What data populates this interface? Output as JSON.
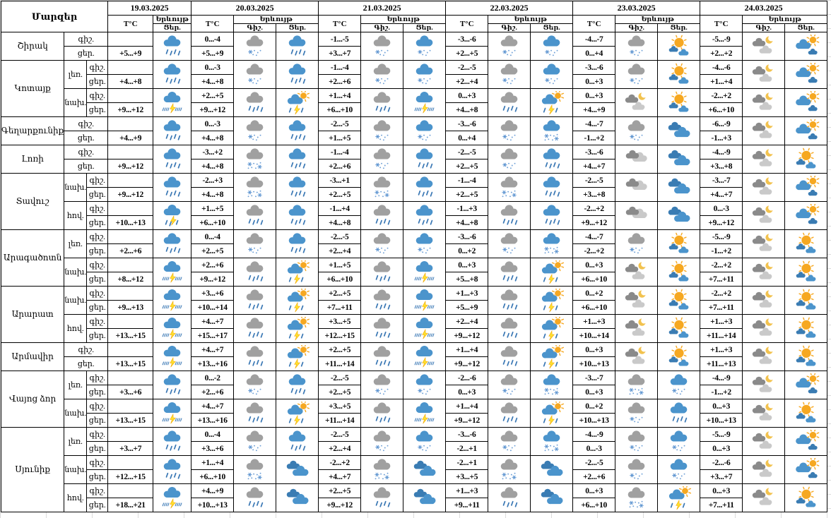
{
  "header": {
    "region_header": "Մարզեր",
    "temp_header": "T°C",
    "phenomenon_header": "Երևույթ",
    "night_header": "Գիշ.",
    "day_header": "Ցեր.",
    "dates": [
      "19.03.2025",
      "20.03.2025",
      "21.03.2025",
      "22.03.2025",
      "23.03.2025",
      "24.03.2025"
    ]
  },
  "labels": {
    "night": "գիշ.",
    "day": "ցեր."
  },
  "colors": {
    "cloud_blue": "#4b94cc",
    "cloud_blue_dark": "#3a7cb3",
    "cloud_gray": "#a0a0a0",
    "cloud_gray_dark": "#8a8a8a",
    "cloud_gray_light": "#c9c9c9",
    "rain": "#3977b4",
    "flake": "#5b93d0",
    "flake_dot": "#6d9fd6",
    "sun": "#f6a821",
    "moon": "#f2c24e",
    "bolt": "#ffe12e",
    "bolt_edge": "#f0a500",
    "border": "#000000",
    "grid": "#dcdcdc"
  },
  "icon_names": {
    "rain-blue": "rain-icon",
    "rain-gray": "rain-icon",
    "snow-gray": "snow-icon",
    "snow-blue": "snow-icon",
    "sleet-gray": "heavy-snow-icon",
    "sleet-blue": "heavy-snow-icon",
    "storm-blue": "thunderstorm-icon",
    "storm-light-blue": "thunderstorm-light-icon",
    "sun-storm": "sun-thunderstorm-icon",
    "clouds-blue": "clouds-icon",
    "clouds-gray": "clouds-icon",
    "moon-cloud": "moon-clouds-icon",
    "sun-clouds": "sunny-clouds-icon",
    "cloud-sun": "partly-sunny-icon"
  },
  "regions": [
    {
      "name": "Շիրակ",
      "parts": [
        {
          "sub": null,
          "d": [
            [
              "",
              "+5...+9",
              null,
              "rain-blue"
            ],
            [
              "0...-4",
              "+5...+9",
              "snow-gray",
              "rain-blue"
            ],
            [
              "-1...-5",
              "+3...+7",
              "snow-gray",
              "snow-blue"
            ],
            [
              "-3...-6",
              "+2...+5",
              "snow-gray",
              "snow-blue"
            ],
            [
              "-4...-7",
              "0...+4",
              "snow-gray",
              "sun-clouds"
            ],
            [
              "-5...-9",
              "+2...+2",
              "moon-cloud",
              "cloud-sun"
            ]
          ]
        }
      ]
    },
    {
      "name": "Կոտայք",
      "parts": [
        {
          "sub": "լեռ.",
          "d": [
            [
              "",
              "+4...+8",
              null,
              "rain-blue"
            ],
            [
              "0...-3",
              "+4...+8",
              "snow-gray",
              "rain-blue"
            ],
            [
              "-1...-4",
              "+2...+6",
              "snow-gray",
              "snow-blue"
            ],
            [
              "-2...-5",
              "+2...+4",
              "snow-gray",
              "snow-blue"
            ],
            [
              "-3...-6",
              "0...+3",
              "snow-gray",
              "sun-clouds"
            ],
            [
              "-4...-6",
              "+1...+4",
              "moon-cloud",
              "cloud-sun"
            ]
          ]
        },
        {
          "sub": "նախ.",
          "d": [
            [
              "",
              "+9...+12",
              null,
              "storm-blue"
            ],
            [
              "+2...+5",
              "+9...+12",
              "rain-gray",
              "sun-storm"
            ],
            [
              "+1...+4",
              "+6...+10",
              "rain-gray",
              "storm-blue"
            ],
            [
              "0...+3",
              "+4...+8",
              "rain-gray",
              "sun-storm"
            ],
            [
              "0...+3",
              "+4...+9",
              "moon-cloud",
              "sun-clouds"
            ],
            [
              "-2...+2",
              "+6...+10",
              "moon-cloud",
              "cloud-sun"
            ]
          ]
        }
      ]
    },
    {
      "name": "Գեղարքունիք",
      "parts": [
        {
          "sub": null,
          "d": [
            [
              "",
              "+4...+9",
              null,
              "rain-blue"
            ],
            [
              "0...-3",
              "+4...+8",
              "snow-gray",
              "rain-blue"
            ],
            [
              "-2...-5",
              "+1...+5",
              "snow-gray",
              "snow-blue"
            ],
            [
              "-3...-6",
              "0...+4",
              "snow-gray",
              "sleet-blue"
            ],
            [
              "-4...-7",
              "-1...+2",
              "snow-gray",
              "clouds-blue"
            ],
            [
              "-6...-9",
              "-1...+3",
              "moon-cloud",
              "cloud-sun"
            ]
          ]
        }
      ]
    },
    {
      "name": "Լոռի",
      "parts": [
        {
          "sub": null,
          "d": [
            [
              "",
              "+9...+12",
              null,
              "rain-blue"
            ],
            [
              "-3...+2",
              "+4...+8",
              "sleet-gray",
              "rain-blue"
            ],
            [
              "-1...-4",
              "+2...+6",
              "snow-gray",
              "rain-blue"
            ],
            [
              "-2...-5",
              "+2...+5",
              "snow-gray",
              "rain-blue"
            ],
            [
              "-3...-6",
              "+4...+7",
              "clouds-gray",
              "clouds-blue"
            ],
            [
              "-4...-9",
              "+3...+8",
              "moon-cloud",
              "sun-clouds"
            ]
          ]
        }
      ]
    },
    {
      "name": "Տավուշ",
      "parts": [
        {
          "sub": "նախ.",
          "d": [
            [
              "",
              "+9...+12",
              null,
              "rain-blue"
            ],
            [
              "-2...+3",
              "+4...+8",
              "sleet-gray",
              "rain-blue"
            ],
            [
              "-3...+1",
              "+2...+5",
              "sleet-gray",
              "rain-blue"
            ],
            [
              "-1...-4",
              "+2...+5",
              "sleet-gray",
              "rain-blue"
            ],
            [
              "-2...-5",
              "+3...+8",
              "clouds-gray",
              "clouds-blue"
            ],
            [
              "-3...-7",
              "+4...+7",
              "moon-cloud",
              "cloud-sun"
            ]
          ]
        },
        {
          "sub": "հով.",
          "d": [
            [
              "",
              "+10...+13",
              null,
              "storm-light-blue"
            ],
            [
              "+1...+5",
              "+6...+10",
              "rain-gray",
              "rain-blue"
            ],
            [
              "-1...+4",
              "+4...+8",
              "rain-gray",
              "rain-blue"
            ],
            [
              "-1...+3",
              "+4...+8",
              "rain-gray",
              "rain-blue"
            ],
            [
              "-2...+2",
              "+9...+12",
              "clouds-gray",
              "clouds-blue"
            ],
            [
              "0...-3",
              "+9...+12",
              "moon-cloud",
              "cloud-sun"
            ]
          ]
        }
      ]
    },
    {
      "name": "Արագածոտն",
      "parts": [
        {
          "sub": "լեռ.",
          "d": [
            [
              "",
              "+2...+6",
              null,
              "rain-blue"
            ],
            [
              "0...-4",
              "+2...+5",
              "snow-gray",
              "rain-blue"
            ],
            [
              "-2...-5",
              "+2...+4",
              "snow-gray",
              "snow-blue"
            ],
            [
              "-3...-6",
              "0...+2",
              "snow-gray",
              "sleet-blue"
            ],
            [
              "-4...-7",
              "-2...+2",
              "snow-gray",
              "sun-clouds"
            ],
            [
              "-5...-9",
              "-1...+2",
              "moon-cloud",
              "sun-clouds"
            ]
          ]
        },
        {
          "sub": "նախ.",
          "d": [
            [
              "",
              "+8...+12",
              null,
              "storm-blue"
            ],
            [
              "+2...+6",
              "+9...+12",
              "rain-gray",
              "sun-storm"
            ],
            [
              "+1...+5",
              "+6...+10",
              "rain-gray",
              "storm-blue"
            ],
            [
              "0...+3",
              "+5...+8",
              "rain-gray",
              "sun-storm"
            ],
            [
              "0...+3",
              "+6...+10",
              "moon-cloud",
              "sun-clouds"
            ],
            [
              "-2...+2",
              "+7...+11",
              "moon-cloud",
              "sun-clouds"
            ]
          ]
        }
      ]
    },
    {
      "name": "Արարատ",
      "parts": [
        {
          "sub": "նախ.",
          "d": [
            [
              "",
              "+9...+13",
              null,
              "storm-blue"
            ],
            [
              "+3...+6",
              "+10...+14",
              "rain-gray",
              "sun-storm"
            ],
            [
              "+2...+5",
              "+7...+11",
              "rain-gray",
              "storm-blue"
            ],
            [
              "+1...+3",
              "+5...+9",
              "rain-gray",
              "sun-storm"
            ],
            [
              "0...+2",
              "+6...+10",
              "moon-cloud",
              "sun-clouds"
            ],
            [
              "-2...+2",
              "+7...+11",
              "moon-cloud",
              "sun-clouds"
            ]
          ]
        },
        {
          "sub": "հով.",
          "d": [
            [
              "",
              "+13...+15",
              null,
              "storm-blue"
            ],
            [
              "+4...+7",
              "+15...+17",
              "rain-gray",
              "sun-storm"
            ],
            [
              "+3...+5",
              "+12...+15",
              "rain-gray",
              "storm-blue"
            ],
            [
              "+2...+4",
              "+9...+12",
              "rain-gray",
              "sun-storm"
            ],
            [
              "+1...+3",
              "+10...+14",
              "moon-cloud",
              "sun-clouds"
            ],
            [
              "+1...+3",
              "+11...+14",
              "moon-cloud",
              "sun-clouds"
            ]
          ]
        }
      ]
    },
    {
      "name": "Արմավիր",
      "parts": [
        {
          "sub": null,
          "d": [
            [
              "",
              "+13...+15",
              null,
              "storm-blue"
            ],
            [
              "+4...+7",
              "+13...+16",
              "rain-gray",
              "sun-storm"
            ],
            [
              "+2...+5",
              "+11...+14",
              "rain-gray",
              "storm-blue"
            ],
            [
              "+1...+4",
              "+9...+12",
              "rain-gray",
              "sun-storm"
            ],
            [
              "0...+3",
              "+10...+13",
              "moon-cloud",
              "sun-clouds"
            ],
            [
              "+1...+3",
              "+11...+13",
              "moon-cloud",
              "sun-clouds"
            ]
          ]
        }
      ]
    },
    {
      "name": "Վայոց ձոր",
      "parts": [
        {
          "sub": "լեռ.",
          "d": [
            [
              "",
              "+3...+6",
              null,
              "rain-blue"
            ],
            [
              "0...-2",
              "+2...+6",
              "snow-gray",
              "rain-blue"
            ],
            [
              "-2...-5",
              "+2...+5",
              "snow-gray",
              "snow-blue"
            ],
            [
              "-2...-6",
              "0...+3",
              "snow-gray",
              "sleet-blue"
            ],
            [
              "-3...-7",
              "0...+3",
              "sleet-gray",
              "snow-blue"
            ],
            [
              "-4...-9",
              "-1...+2",
              "moon-cloud",
              "cloud-sun"
            ]
          ]
        },
        {
          "sub": "նախ.",
          "d": [
            [
              "",
              "+13...+15",
              null,
              "storm-blue"
            ],
            [
              "+4...+7",
              "+13...+16",
              "rain-gray",
              "sun-storm"
            ],
            [
              "+3...+5",
              "+11...+14",
              "rain-gray",
              "storm-blue"
            ],
            [
              "+1...+4",
              "+9...+12",
              "rain-gray",
              "sun-storm"
            ],
            [
              "0...+2",
              "+10...+13",
              "snow-gray",
              "rain-blue"
            ],
            [
              "0...+3",
              "+10...+13",
              "moon-cloud",
              "sun-clouds"
            ]
          ]
        }
      ]
    },
    {
      "name": "Սյունիք",
      "parts": [
        {
          "sub": "լեռ.",
          "d": [
            [
              "",
              "+3...+7",
              null,
              "rain-blue"
            ],
            [
              "0...-4",
              "+3...+6",
              "snow-gray",
              "rain-blue"
            ],
            [
              "-2...-5",
              "+2...+4",
              "snow-gray",
              "snow-blue"
            ],
            [
              "-3...-6",
              "-2...+1",
              "snow-gray",
              "sleet-blue"
            ],
            [
              "-4...-9",
              "0...-3",
              "snow-gray",
              "snow-blue"
            ],
            [
              "-5...-9",
              "0...+3",
              "moon-cloud",
              "cloud-sun"
            ]
          ]
        },
        {
          "sub": "նախ.",
          "d": [
            [
              "",
              "+12...+15",
              null,
              "rain-blue"
            ],
            [
              "+1...+4",
              "+6...+10",
              "sleet-gray",
              "clouds-blue"
            ],
            [
              "-2...+2",
              "+4...+7",
              "sleet-gray",
              "clouds-blue"
            ],
            [
              "-2...+1",
              "+3...+5",
              "sleet-gray",
              "clouds-blue"
            ],
            [
              "-2...-5",
              "+2...+6",
              "snow-gray",
              "snow-blue"
            ],
            [
              "-2...-6",
              "+3...+7",
              "moon-cloud",
              "cloud-sun"
            ]
          ]
        },
        {
          "sub": "հով.",
          "d": [
            [
              "",
              "+18...+21",
              null,
              "storm-blue"
            ],
            [
              "+4...+9",
              "+10...+13",
              "rain-gray",
              "clouds-blue"
            ],
            [
              "+2...+5",
              "+9...+12",
              "rain-gray",
              "clouds-blue"
            ],
            [
              "+1...+3",
              "+9...+11",
              "rain-gray",
              "clouds-blue"
            ],
            [
              "0...+3",
              "+6...+10",
              "sleet-gray",
              "sun-storm"
            ],
            [
              "0...+3",
              "+7...+11",
              "moon-cloud",
              "sun-clouds"
            ]
          ]
        }
      ]
    }
  ]
}
